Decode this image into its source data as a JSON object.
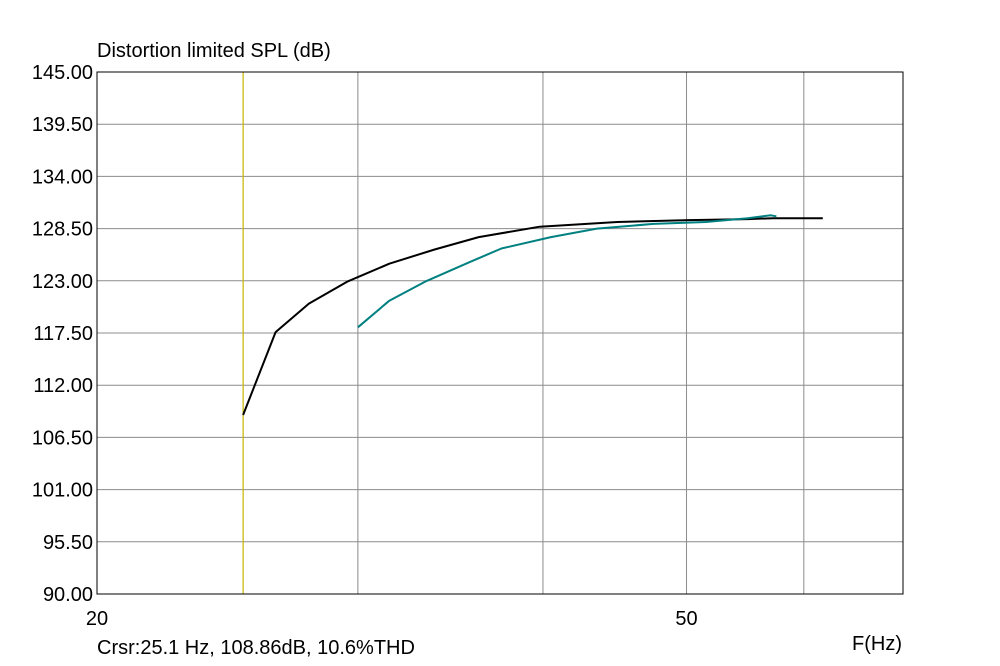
{
  "chart_data": {
    "type": "line",
    "title": "Distortion limited SPL (dB)",
    "xlabel": "F(Hz)",
    "ylabel": "",
    "x_scale": "log",
    "xlim": [
      20,
      70
    ],
    "ylim": [
      90,
      145
    ],
    "x_ticks": [
      {
        "value": 20,
        "label": "20"
      },
      {
        "value": 50,
        "label": "50"
      }
    ],
    "x_grid": [
      30,
      40,
      50,
      60,
      70
    ],
    "y_ticks": [
      "145.00",
      "139.50",
      "134.00",
      "128.50",
      "123.00",
      "117.50",
      "112.00",
      "106.50",
      "101.00",
      "95.50",
      "90.00"
    ],
    "grid": true,
    "cursor": {
      "x": 25.1,
      "color": "#c8b400",
      "readout": "Crsr:25.1 Hz, 108.86dB, 10.6%THD"
    },
    "series": [
      {
        "color": "#000000",
        "points": [
          [
            25.1,
            108.86
          ],
          [
            26.4,
            117.6
          ],
          [
            27.8,
            120.6
          ],
          [
            29.5,
            122.9
          ],
          [
            31.5,
            124.8
          ],
          [
            33.8,
            126.3
          ],
          [
            36.2,
            127.6
          ],
          [
            39.8,
            128.7
          ],
          [
            44.9,
            129.2
          ],
          [
            50.2,
            129.4
          ],
          [
            55.0,
            129.5
          ],
          [
            57.2,
            129.6
          ],
          [
            61.8,
            129.6
          ]
        ]
      },
      {
        "color": "#008080",
        "points": [
          [
            30.0,
            118.1
          ],
          [
            31.5,
            120.9
          ],
          [
            33.3,
            122.9
          ],
          [
            35.6,
            124.9
          ],
          [
            37.5,
            126.4
          ],
          [
            40.5,
            127.6
          ],
          [
            43.5,
            128.5
          ],
          [
            47.5,
            129.0
          ],
          [
            51.5,
            129.2
          ],
          [
            55.0,
            129.6
          ],
          [
            57.0,
            129.9
          ],
          [
            57.5,
            129.8
          ]
        ]
      }
    ]
  }
}
